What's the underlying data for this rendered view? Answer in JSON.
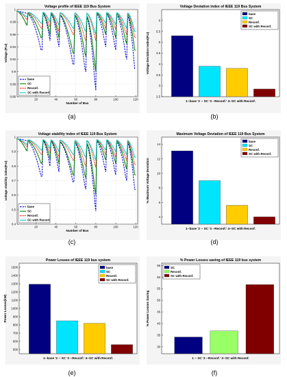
{
  "chart_data": [
    {
      "id": "a",
      "type": "line",
      "caption": "(a)",
      "title": "Voltage profile of IEEE 119 Bus System",
      "xlabel": "Number of Bus",
      "ylabel": "Voltage (P.U)",
      "xlim": [
        1,
        122
      ],
      "ylim": [
        0.86,
        1.0
      ],
      "xticks": [
        "20",
        "40",
        "60",
        "80",
        "100",
        "120"
      ],
      "yticks": [
        "0.86",
        "0.88",
        "0.9",
        "0.92",
        "0.94",
        "0.96",
        "0.98",
        "1"
      ],
      "legend": [
        "base",
        "SC",
        "Reconf.",
        "SC with Reconf."
      ],
      "legend_position": "bottom-left",
      "grid": true,
      "colors": [
        "#0000cc",
        "#008000",
        "#ff0000",
        "#00c8c8"
      ],
      "features": {
        "breaks": [
          1,
          12,
          27,
          35,
          44,
          59,
          71,
          81,
          91,
          101,
          112,
          120
        ],
        "dips": [
          [
            0.994,
            0.975,
            0.984,
            0.988
          ],
          [
            0.935,
            0.955,
            0.97,
            0.978
          ],
          [
            0.95,
            0.96,
            0.972,
            0.98
          ],
          [
            0.94,
            0.955,
            0.965,
            0.975
          ],
          [
            0.912,
            0.93,
            0.96,
            0.97
          ],
          [
            0.9,
            0.925,
            0.95,
            0.965
          ],
          [
            0.87,
            0.9,
            0.95,
            0.96
          ],
          [
            0.94,
            0.96,
            0.97,
            0.978
          ],
          [
            0.935,
            0.955,
            0.968,
            0.976
          ],
          [
            0.92,
            0.945,
            0.96,
            0.97
          ],
          [
            0.905,
            0.935,
            0.955,
            0.965
          ]
        ]
      }
    },
    {
      "id": "b",
      "type": "bar",
      "caption": "(b)",
      "title": "Voltage Deviation index of IEEE 119 Bus System",
      "xlabel": "1--base '2 -- SC '3 --Reconf.' 4--SC with Reconf.",
      "ylabel": "Voltage Deviation Index(P.U)",
      "categories": [
        "base",
        "SC",
        "Reconf.",
        "SC with Reconf."
      ],
      "values": [
        5.3,
        3.9,
        3.8,
        2.85
      ],
      "ylim": [
        2.5,
        6.5
      ],
      "yticks": [
        "2.5",
        "3",
        "3.5",
        "4",
        "4.5",
        "5",
        "5.5",
        "6"
      ],
      "legend": [
        "base",
        "SC",
        "Reconf.",
        "SC with Reconf."
      ],
      "legend_position": "top-right",
      "colors": [
        "#000080",
        "#00e5ff",
        "#ffcc00",
        "#800000"
      ]
    },
    {
      "id": "c",
      "type": "line",
      "caption": "(c)",
      "title": "Voltage stability index of IEEE 119 Bus System",
      "xlabel": "Number of Bus",
      "ylabel": "voltage stability index(P.U)",
      "xlim": [
        1,
        122
      ],
      "ylim": [
        0.4,
        1.0
      ],
      "xticks": [
        "20",
        "40",
        "60",
        "80",
        "100",
        "120"
      ],
      "yticks": [
        "0.4",
        "0.5",
        "0.6",
        "0.7",
        "0.8",
        "0.9",
        "1"
      ],
      "legend": [
        "base",
        "SC",
        "Reconf.",
        "SC with Reconf."
      ],
      "legend_position": "bottom-left",
      "grid": true,
      "colors": [
        "#0000cc",
        "#008000",
        "#ff0000",
        "#00c8c8"
      ],
      "features": {
        "breaks": [
          1,
          12,
          27,
          35,
          44,
          59,
          71,
          81,
          91,
          101,
          112,
          120
        ],
        "dips": [
          [
            0.975,
            0.905,
            0.935,
            0.95
          ],
          [
            0.73,
            0.82,
            0.88,
            0.91
          ],
          [
            0.8,
            0.85,
            0.89,
            0.92
          ],
          [
            0.76,
            0.82,
            0.86,
            0.9
          ],
          [
            0.69,
            0.74,
            0.84,
            0.88
          ],
          [
            0.64,
            0.72,
            0.8,
            0.86
          ],
          [
            0.49,
            0.6,
            0.79,
            0.84
          ],
          [
            0.76,
            0.84,
            0.88,
            0.91
          ],
          [
            0.74,
            0.82,
            0.86,
            0.9
          ],
          [
            0.7,
            0.78,
            0.84,
            0.88
          ],
          [
            0.64,
            0.74,
            0.81,
            0.86
          ]
        ]
      }
    },
    {
      "id": "d",
      "type": "bar",
      "caption": "(d)",
      "title": "Maximum Voltage Deviation of IEEE 119 Bus System",
      "xlabel": "1--base '2 -- SC '3 --Reconf.' 4--SC with Reconf.",
      "ylabel": "% Maximum Voltage Deviation",
      "categories": [
        "base",
        "SC",
        "Reconf.",
        "SC with Reconf."
      ],
      "values": [
        13.1,
        9.0,
        5.6,
        4.0
      ],
      "ylim": [
        3,
        15
      ],
      "yticks": [
        "4",
        "6",
        "8",
        "10",
        "12",
        "14"
      ],
      "legend": [
        "base",
        "SC",
        "Reconf.",
        "SC with Reconf."
      ],
      "legend_position": "top-right",
      "colors": [
        "#000080",
        "#00e5ff",
        "#ffcc00",
        "#800000"
      ]
    },
    {
      "id": "e",
      "type": "bar",
      "caption": "(e)",
      "title": "Power Losses of IEEE 119 bus system",
      "xlabel": "1--base '2 -- SC '3 --Reconf.' 4--SC with Reconf.",
      "ylabel": "Power Losses(kW)",
      "categories": [
        "base",
        "SC",
        "Reconf.",
        "SC with Reconf."
      ],
      "values": [
        1295,
        850,
        820,
        560
      ],
      "ylim": [
        450,
        1550
      ],
      "yticks": [
        "500",
        "600",
        "700",
        "800",
        "900",
        "1000",
        "1100",
        "1200",
        "1300",
        "1400",
        "1500"
      ],
      "legend": [
        "base",
        "SC",
        "Reconf.",
        "SC with Reconf."
      ],
      "legend_position": "top-right",
      "colors": [
        "#000080",
        "#00e5ff",
        "#ffcc00",
        "#800000"
      ]
    },
    {
      "id": "f",
      "type": "bar",
      "caption": "(f)",
      "title": "% Power Losses saving of IEEE 119 bus system",
      "xlabel": "1 -- SC '2 --Reconf.' 3--SC with Reconf.",
      "ylabel": "% Power Losses Saving",
      "categories": [
        "SC",
        "Reconf.",
        "SC with Reconf."
      ],
      "values": [
        34.2,
        36.8,
        56.8
      ],
      "ylim": [
        27,
        66
      ],
      "yticks": [
        "30",
        "35",
        "40",
        "45",
        "50",
        "55",
        "60",
        "65"
      ],
      "legend": [
        "SC",
        "Reconf.",
        "SC with Reconf."
      ],
      "legend_position": "top-left",
      "colors": [
        "#000080",
        "#99ff66",
        "#800000"
      ]
    }
  ]
}
